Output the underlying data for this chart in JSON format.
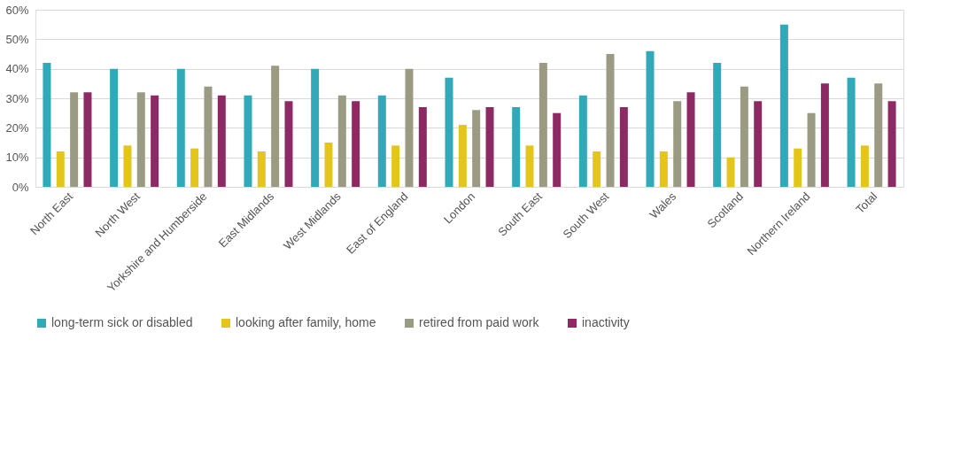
{
  "chart_data": {
    "type": "bar",
    "categories": [
      "North East",
      "North West",
      "Yorkshire and Humberside",
      "East Midlands",
      "West Midlands",
      "East of England",
      "London",
      "South East",
      "South West",
      "Wales",
      "Scotland",
      "Northern Ireland",
      "Total"
    ],
    "series": [
      {
        "name": "long-term sick or disabled",
        "color": "#31a9b8",
        "values": [
          42,
          40,
          40,
          31,
          40,
          31,
          37,
          27,
          31,
          46,
          42,
          55,
          37
        ]
      },
      {
        "name": "looking after family, home",
        "color": "#e3c51b",
        "values": [
          12,
          14,
          13,
          12,
          15,
          14,
          21,
          14,
          12,
          12,
          10,
          13,
          14
        ]
      },
      {
        "name": "retired from paid work",
        "color": "#9b9b84",
        "values": [
          32,
          32,
          34,
          41,
          31,
          40,
          26,
          42,
          45,
          29,
          34,
          25,
          35
        ]
      },
      {
        "name": "inactivity",
        "color": "#8e2a63",
        "values": [
          32,
          31,
          31,
          29,
          29,
          27,
          27,
          25,
          27,
          32,
          29,
          35,
          29
        ]
      }
    ],
    "ylim": [
      0,
      60
    ],
    "yticks": [
      {
        "value": 0,
        "label": "0%"
      },
      {
        "value": 10,
        "label": "10%"
      },
      {
        "value": 20,
        "label": "20%"
      },
      {
        "value": 30,
        "label": "30%"
      },
      {
        "value": 40,
        "label": "40%"
      },
      {
        "value": 50,
        "label": "50%"
      },
      {
        "value": 60,
        "label": "60%"
      }
    ],
    "grid": "y",
    "legend": "bottom"
  }
}
